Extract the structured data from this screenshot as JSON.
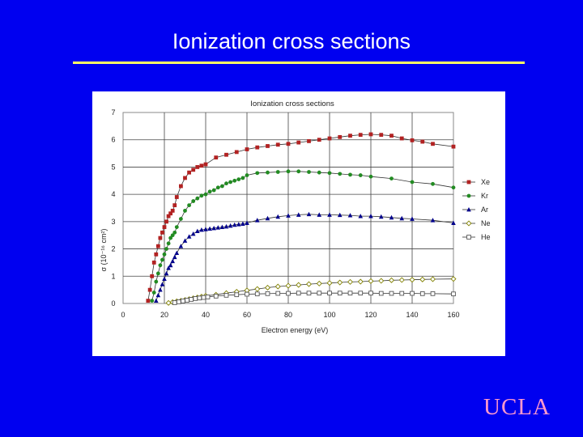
{
  "slide": {
    "title": "Ionization cross sections",
    "logo_text": "UCLA",
    "colors": {
      "background": "#0000f0",
      "rule": "#ffff66",
      "logo": "#ff99cc"
    }
  },
  "chart_data": {
    "type": "line",
    "title": "Ionization cross sections",
    "xlabel": "Electron energy (eV)",
    "ylabel": "σ (10⁻¹⁶ cm²)",
    "xlim": [
      0,
      160
    ],
    "ylim": [
      0,
      7
    ],
    "xticks": [
      0,
      20,
      40,
      60,
      80,
      100,
      120,
      140,
      160
    ],
    "yticks": [
      0,
      1,
      2,
      3,
      4,
      5,
      6,
      7
    ],
    "grid": true,
    "legend_position": "right",
    "series": [
      {
        "name": "Xe",
        "color": "#b22222",
        "marker": "square",
        "x": [
          12.1,
          13,
          14,
          15,
          16,
          17,
          18,
          19,
          20,
          21,
          22,
          23,
          24,
          25,
          26,
          28,
          30,
          32,
          34,
          36,
          38,
          40,
          45,
          50,
          55,
          60,
          65,
          70,
          75,
          80,
          85,
          90,
          95,
          100,
          105,
          110,
          115,
          120,
          125,
          130,
          135,
          140,
          145,
          150,
          160
        ],
        "y": [
          0.1,
          0.5,
          1.0,
          1.5,
          1.8,
          2.1,
          2.4,
          2.6,
          2.8,
          3.0,
          3.2,
          3.3,
          3.4,
          3.6,
          3.9,
          4.3,
          4.6,
          4.8,
          4.9,
          5.0,
          5.05,
          5.1,
          5.35,
          5.45,
          5.55,
          5.65,
          5.72,
          5.77,
          5.82,
          5.85,
          5.9,
          5.95,
          6.0,
          6.05,
          6.1,
          6.15,
          6.18,
          6.2,
          6.18,
          6.15,
          6.05,
          5.98,
          5.93,
          5.85,
          5.75
        ]
      },
      {
        "name": "Kr",
        "color": "#228b22",
        "marker": "circle",
        "x": [
          14,
          15,
          16,
          17,
          18,
          19,
          20,
          21,
          22,
          23,
          24,
          25,
          26,
          28,
          30,
          32,
          34,
          36,
          38,
          40,
          42,
          44,
          46,
          48,
          50,
          52,
          54,
          56,
          58,
          60,
          65,
          70,
          75,
          80,
          85,
          90,
          95,
          100,
          105,
          110,
          115,
          120,
          130,
          140,
          150,
          160
        ],
        "y": [
          0.1,
          0.4,
          0.8,
          1.1,
          1.4,
          1.6,
          1.8,
          2.0,
          2.2,
          2.4,
          2.5,
          2.6,
          2.8,
          3.1,
          3.4,
          3.6,
          3.75,
          3.85,
          3.95,
          4.0,
          4.1,
          4.15,
          4.25,
          4.3,
          4.4,
          4.45,
          4.5,
          4.55,
          4.6,
          4.7,
          4.78,
          4.8,
          4.82,
          4.84,
          4.84,
          4.82,
          4.8,
          4.78,
          4.75,
          4.72,
          4.7,
          4.65,
          4.58,
          4.45,
          4.38,
          4.25
        ]
      },
      {
        "name": "Ar",
        "color": "#00008b",
        "marker": "triangle",
        "x": [
          16,
          17,
          18,
          19,
          20,
          21,
          22,
          23,
          24,
          25,
          26,
          28,
          30,
          32,
          34,
          36,
          38,
          40,
          42,
          44,
          46,
          48,
          50,
          52,
          54,
          56,
          58,
          60,
          65,
          70,
          75,
          80,
          85,
          90,
          95,
          100,
          105,
          110,
          115,
          120,
          125,
          130,
          135,
          140,
          150,
          160
        ],
        "y": [
          0.1,
          0.3,
          0.5,
          0.7,
          0.9,
          1.1,
          1.3,
          1.4,
          1.55,
          1.7,
          1.85,
          2.1,
          2.3,
          2.45,
          2.55,
          2.65,
          2.7,
          2.72,
          2.74,
          2.76,
          2.78,
          2.8,
          2.82,
          2.85,
          2.88,
          2.9,
          2.92,
          2.95,
          3.05,
          3.12,
          3.18,
          3.22,
          3.25,
          3.27,
          3.25,
          3.25,
          3.24,
          3.23,
          3.2,
          3.2,
          3.18,
          3.15,
          3.12,
          3.1,
          3.05,
          2.95
        ]
      },
      {
        "name": "Ne",
        "color": "#808000",
        "marker": "diamond",
        "x": [
          22,
          24,
          26,
          28,
          30,
          32,
          34,
          36,
          38,
          40,
          45,
          50,
          55,
          60,
          65,
          70,
          75,
          80,
          85,
          90,
          95,
          100,
          105,
          110,
          115,
          120,
          125,
          130,
          135,
          140,
          145,
          150,
          160
        ],
        "y": [
          0.02,
          0.05,
          0.08,
          0.1,
          0.13,
          0.16,
          0.19,
          0.22,
          0.25,
          0.28,
          0.32,
          0.38,
          0.43,
          0.48,
          0.53,
          0.58,
          0.62,
          0.65,
          0.68,
          0.71,
          0.73,
          0.75,
          0.77,
          0.79,
          0.8,
          0.82,
          0.83,
          0.85,
          0.86,
          0.87,
          0.88,
          0.89,
          0.9
        ]
      },
      {
        "name": "He",
        "color": "#555555",
        "marker": "open-square",
        "x": [
          25,
          27,
          29,
          31,
          33,
          35,
          37,
          39,
          41,
          45,
          50,
          55,
          60,
          65,
          70,
          75,
          80,
          85,
          90,
          95,
          100,
          105,
          110,
          115,
          120,
          125,
          130,
          135,
          140,
          145,
          150,
          160
        ],
        "y": [
          0.03,
          0.06,
          0.09,
          0.12,
          0.15,
          0.18,
          0.2,
          0.22,
          0.24,
          0.27,
          0.3,
          0.32,
          0.34,
          0.35,
          0.36,
          0.37,
          0.37,
          0.38,
          0.38,
          0.38,
          0.38,
          0.38,
          0.38,
          0.38,
          0.38,
          0.37,
          0.37,
          0.37,
          0.37,
          0.36,
          0.36,
          0.35
        ]
      }
    ]
  }
}
